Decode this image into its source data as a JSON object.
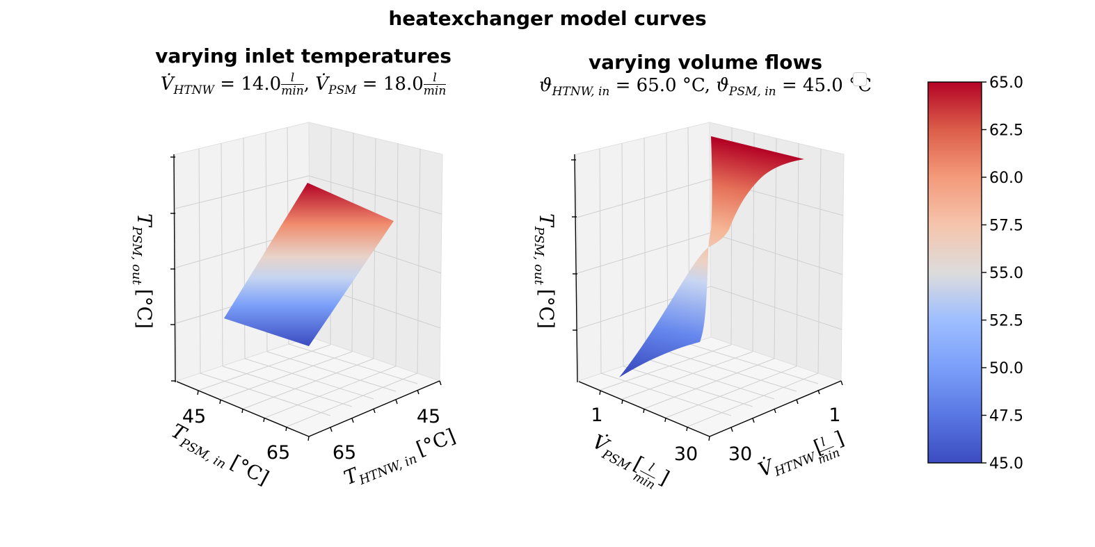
{
  "figure": {
    "title": "heatexchanger model curves"
  },
  "chart_data": [
    {
      "type": "surface3d",
      "title": "varying inlet temperatures",
      "subtitle": "V̇HTNW = 14.0 l/min, V̇PSM = 18.0 l/min",
      "subtitle_parts": {
        "v1_name": "V̇",
        "v1_sub": "HTNW",
        "v1_val": " = 14.0",
        "v1_unit_num": "l",
        "v1_unit_den": "min",
        "sep": ", ",
        "v2_name": "V̇",
        "v2_sub": "PSM",
        "v2_val": " = 18.0",
        "v2_unit_num": "l",
        "v2_unit_den": "min"
      },
      "xlabel": "THTNW,in [°C]",
      "xlabel_parts": {
        "sym": "T",
        "sub": "HTNW, in",
        "unit": "[°C]"
      },
      "ylabel": "TPSM,in [°C]",
      "ylabel_parts": {
        "sym": "T",
        "sub": "PSM, in",
        "unit": "[°C]"
      },
      "zlabel": "TPSM,out [°C]",
      "zlabel_parts": {
        "sym": "T",
        "sub": "PSM, out",
        "unit": "[°C]"
      },
      "x_ticks": [
        "45",
        "65"
      ],
      "y_ticks": [
        "45",
        "65"
      ],
      "x_range": [
        45,
        65
      ],
      "y_range": [
        45,
        65
      ],
      "z_range": [
        45,
        65
      ],
      "surface_corners": [
        {
          "T_HTNW_in": 45,
          "T_PSM_in": 45,
          "T_PSM_out": 45.5
        },
        {
          "T_HTNW_in": 65,
          "T_PSM_in": 45,
          "T_PSM_out": 59.0
        },
        {
          "T_HTNW_in": 65,
          "T_PSM_in": 65,
          "T_PSM_out": 64.8
        },
        {
          "T_HTNW_in": 45,
          "T_PSM_in": 65,
          "T_PSM_out": 50.5
        }
      ],
      "grid": true
    },
    {
      "type": "surface3d",
      "title": "varying volume flows",
      "subtitle": "ϑHTNW,in = 65.0 °C, ϑPSM,in = 45.0 °C",
      "subtitle_parts": {
        "v1_name": "ϑ",
        "v1_sub": "HTNW, in",
        "v1_val": " = 65.0 °C",
        "sep": ", ",
        "v2_name": "ϑ",
        "v2_sub": "PSM, in",
        "v2_val": " = 45.0 °C"
      },
      "xlabel": "V̇HTNW [l/min]",
      "xlabel_parts": {
        "sym": "V̇",
        "sub": "HTNW",
        "unit_num": "l",
        "unit_den": "min"
      },
      "ylabel": "V̇PSM [l/min]",
      "ylabel_parts": {
        "sym": "V̇",
        "sub": "PSM",
        "unit_num": "l",
        "unit_den": "min"
      },
      "zlabel": "TPSM,out [°C]",
      "zlabel_parts": {
        "sym": "T",
        "sub": "PSM, out",
        "unit": "[°C]"
      },
      "x_ticks": [
        "1",
        "30"
      ],
      "y_ticks": [
        "1",
        "30"
      ],
      "x_range": [
        1,
        30
      ],
      "y_range": [
        1,
        30
      ],
      "z_range": [
        45,
        65
      ],
      "surface_profile": {
        "V_PSM_at_min_flow": [
          1,
          30
        ],
        "T_PSM_out_front_edge": [
          46.0,
          54.5
        ],
        "T_PSM_out_back_edge": [
          56.0,
          65.0
        ]
      },
      "grid": true
    }
  ],
  "colorbar": {
    "colormap": "coolwarm",
    "min": 45.0,
    "max": 65.0,
    "ticks": [
      "65.0",
      "62.5",
      "60.0",
      "57.5",
      "55.0",
      "52.5",
      "50.0",
      "47.5",
      "45.0"
    ],
    "colors": {
      "low": "#3b4cc0",
      "mid": "#dddddd",
      "high": "#b40426"
    }
  }
}
